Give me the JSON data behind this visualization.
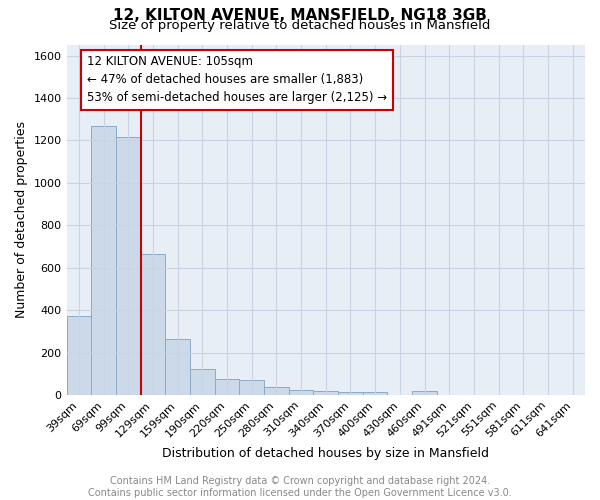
{
  "title": "12, KILTON AVENUE, MANSFIELD, NG18 3GB",
  "subtitle": "Size of property relative to detached houses in Mansfield",
  "xlabel": "Distribution of detached houses by size in Mansfield",
  "ylabel": "Number of detached properties",
  "footer": "Contains HM Land Registry data © Crown copyright and database right 2024.\nContains public sector information licensed under the Open Government Licence v3.0.",
  "categories": [
    "39sqm",
    "69sqm",
    "99sqm",
    "129sqm",
    "159sqm",
    "190sqm",
    "220sqm",
    "250sqm",
    "280sqm",
    "310sqm",
    "340sqm",
    "370sqm",
    "400sqm",
    "430sqm",
    "460sqm",
    "491sqm",
    "521sqm",
    "551sqm",
    "581sqm",
    "611sqm",
    "641sqm"
  ],
  "values": [
    370,
    1270,
    1215,
    665,
    265,
    120,
    75,
    70,
    35,
    22,
    18,
    15,
    15,
    0,
    18,
    0,
    0,
    0,
    0,
    0,
    0
  ],
  "bar_color": "#ccd9e8",
  "bar_edge_color": "#8aaac8",
  "property_line_x": 2.5,
  "property_line_color": "#cc0000",
  "annotation_text": "12 KILTON AVENUE: 105sqm\n← 47% of detached houses are smaller (1,883)\n53% of semi-detached houses are larger (2,125) →",
  "annotation_box_color": "#ffffff",
  "annotation_box_edge_color": "#cc0000",
  "ylim": [
    0,
    1650
  ],
  "yticks": [
    0,
    200,
    400,
    600,
    800,
    1000,
    1200,
    1400,
    1600
  ],
  "grid_color": "#c8d4e4",
  "background_color": "#e8eef6",
  "title_fontsize": 11,
  "subtitle_fontsize": 9.5,
  "axis_label_fontsize": 9,
  "tick_fontsize": 8,
  "footer_fontsize": 7,
  "annotation_fontsize": 8.5
}
